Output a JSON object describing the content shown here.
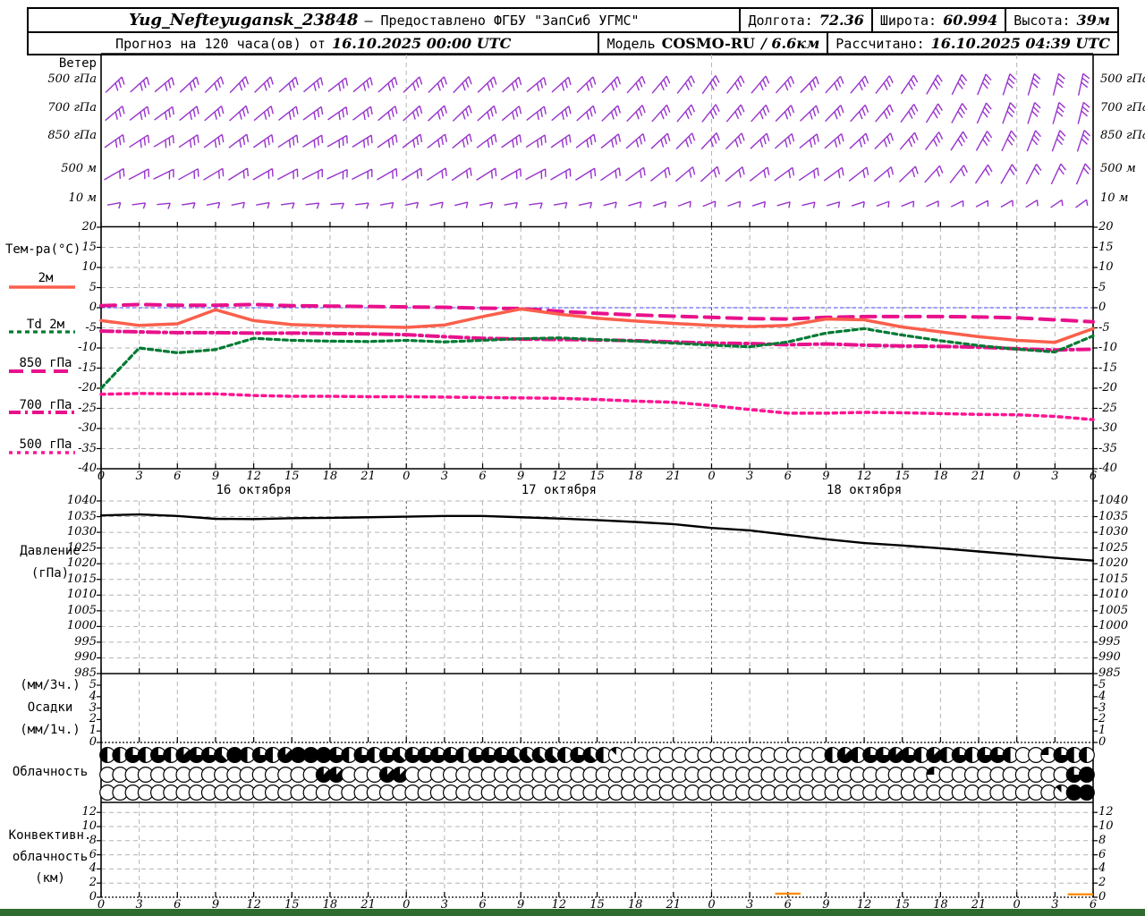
{
  "header": {
    "station": "Yug_Nefteyugansk_23848",
    "provider": "— Предоставлено ФГБУ \"ЗапСиб УГМС\"",
    "lon_label": "Долгота:",
    "lon": "72.36",
    "lat_label": "Широта:",
    "lat": "60.994",
    "alt_label": "Высота:",
    "alt": "39м",
    "forecast_prefix": "Прогноз на 120 часа(ов) от",
    "forecast_time": "16.10.2025 00:00 UTC",
    "model_label": "Модель",
    "model_name": "COSMO-RU",
    "model_res": "/ 6.6км",
    "calc_label": "Рассчитано:",
    "calc_time": "16.10.2025 04:39 UTC"
  },
  "colors": {
    "wind_barb": "#9933cc",
    "grid": "#b3b3b3",
    "day_line": "#555555",
    "frame": "#000000",
    "zero_line": "#4040ff",
    "pressure_line": "#000000",
    "convective_mark": "#ff8c00",
    "footer": "#2e6b2e"
  },
  "chart_data": {
    "type": "meteogram",
    "hours_range": [
      0,
      78
    ],
    "axis": {
      "hour_step": 3,
      "hours": [
        0,
        3,
        6,
        9,
        12,
        15,
        18,
        21,
        24,
        27,
        30,
        33,
        36,
        39,
        42,
        45,
        48,
        51,
        54,
        57,
        60,
        63,
        66,
        69,
        72,
        75,
        78
      ],
      "day_boundaries": [
        24,
        48,
        72
      ],
      "dates": [
        {
          "label": "16 октября",
          "hour": 12
        },
        {
          "label": "17 октября",
          "hour": 36
        },
        {
          "label": "18 октября",
          "hour": 60
        }
      ]
    },
    "wind": {
      "title": "Ветер",
      "levels": [
        {
          "label": "500 гПа",
          "feathers": 3,
          "angles": [
            46,
            48,
            50,
            47,
            45,
            44,
            46,
            48,
            50,
            52,
            50,
            48,
            46,
            45,
            44,
            46,
            48,
            50,
            48,
            46,
            44,
            42,
            40,
            38,
            36,
            38,
            40,
            42,
            44,
            42,
            40,
            38,
            34,
            30,
            26,
            22,
            18,
            16,
            14,
            12
          ]
        },
        {
          "label": "700 гПа",
          "feathers": 3,
          "angles": [
            50,
            52,
            54,
            51,
            49,
            48,
            50,
            52,
            54,
            55,
            53,
            50,
            48,
            47,
            46,
            48,
            50,
            52,
            50,
            48,
            46,
            44,
            42,
            40,
            38,
            40,
            42,
            44,
            46,
            44,
            42,
            40,
            36,
            32,
            28,
            24,
            20,
            18,
            16,
            14
          ]
        },
        {
          "label": "850 гПа",
          "feathers": 3,
          "angles": [
            55,
            57,
            59,
            56,
            54,
            53,
            55,
            57,
            58,
            60,
            58,
            55,
            53,
            52,
            51,
            53,
            55,
            57,
            55,
            53,
            51,
            49,
            47,
            45,
            43,
            45,
            47,
            49,
            51,
            49,
            47,
            45,
            41,
            37,
            33,
            29,
            25,
            22,
            20,
            18
          ]
        },
        {
          "label": "500 м",
          "feathers": 2,
          "angles": [
            60,
            62,
            64,
            61,
            59,
            58,
            60,
            62,
            63,
            65,
            63,
            60,
            58,
            57,
            56,
            58,
            60,
            62,
            60,
            58,
            56,
            54,
            52,
            50,
            48,
            50,
            52,
            54,
            56,
            54,
            52,
            50,
            46,
            42,
            38,
            34,
            30,
            27,
            25,
            23
          ]
        },
        {
          "label": "10 м",
          "feathers": 1,
          "angles": [
            80,
            82,
            84,
            81,
            79,
            78,
            80,
            82,
            83,
            85,
            83,
            80,
            78,
            77,
            76,
            78,
            80,
            82,
            80,
            78,
            76,
            74,
            72,
            70,
            68,
            70,
            72,
            74,
            76,
            74,
            72,
            70,
            68,
            66,
            64,
            62,
            60,
            58,
            56,
            54
          ]
        }
      ]
    },
    "temperature": {
      "title": "Тем-ра(°C)",
      "ylim": [
        -40,
        20
      ],
      "yticks": [
        20,
        15,
        10,
        5,
        0,
        -5,
        -10,
        -15,
        -20,
        -25,
        -30,
        -35,
        -40
      ],
      "series": [
        {
          "key": "t2m",
          "label": "2м",
          "color": "#fa5f4b",
          "width": 3.5,
          "dash": "",
          "values": [
            -3.2,
            -4.4,
            -4.0,
            -0.5,
            -3.2,
            -4.2,
            -4.5,
            -4.7,
            -4.9,
            -4.3,
            -2.2,
            -0.3,
            -1.6,
            -2.6,
            -3.3,
            -3.9,
            -4.4,
            -4.7,
            -4.4,
            -2.8,
            -3.0,
            -4.8,
            -6.0,
            -7.2,
            -8.1,
            -8.6,
            -5.2
          ]
        },
        {
          "key": "td2m",
          "label": "Td 2м",
          "color": "#007a33",
          "width": 3.2,
          "dash": "5 4",
          "values": [
            -20.0,
            -10.0,
            -11.2,
            -10.4,
            -7.6,
            -8.1,
            -8.3,
            -8.4,
            -8.1,
            -8.5,
            -8.1,
            -7.7,
            -7.5,
            -7.9,
            -8.3,
            -8.8,
            -9.3,
            -9.7,
            -8.5,
            -6.3,
            -5.2,
            -6.8,
            -8.2,
            -9.4,
            -10.3,
            -11.0,
            -7.0
          ]
        },
        {
          "key": "t850",
          "label": "850 гПа",
          "color": "#e8118c",
          "width": 4,
          "dash": "16 9",
          "values": [
            0.5,
            0.8,
            0.6,
            0.6,
            0.8,
            0.5,
            0.4,
            0.3,
            0.2,
            0.1,
            -0.1,
            -0.2,
            -0.9,
            -1.4,
            -1.8,
            -2.1,
            -2.4,
            -2.7,
            -2.8,
            -2.4,
            -2.2,
            -2.2,
            -2.2,
            -2.3,
            -2.5,
            -3.0,
            -3.5
          ]
        },
        {
          "key": "t700",
          "label": "700 гПа",
          "color": "#e8118c",
          "width": 4,
          "dash": "13 5 3 5",
          "values": [
            -5.8,
            -6.0,
            -6.2,
            -6.2,
            -6.3,
            -6.3,
            -6.4,
            -6.5,
            -6.7,
            -7.2,
            -7.6,
            -7.8,
            -7.9,
            -8.0,
            -8.2,
            -8.5,
            -8.8,
            -8.9,
            -9.2,
            -9.0,
            -9.3,
            -9.5,
            -9.6,
            -9.8,
            -10.2,
            -10.5,
            -10.3
          ]
        },
        {
          "key": "t500",
          "label": "500 гПа",
          "color": "#ff1493",
          "width": 3.5,
          "dash": "4 5",
          "values": [
            -21.5,
            -21.3,
            -21.4,
            -21.4,
            -21.8,
            -22.0,
            -22.0,
            -22.1,
            -22.1,
            -22.2,
            -22.3,
            -22.4,
            -22.5,
            -22.8,
            -23.2,
            -23.5,
            -24.3,
            -25.3,
            -26.2,
            -26.2,
            -26.0,
            -26.1,
            -26.3,
            -26.5,
            -26.6,
            -27.0,
            -27.8
          ]
        }
      ]
    },
    "pressure": {
      "title": "Давление",
      "unit": "(гПа)",
      "ylim": [
        985,
        1040
      ],
      "yticks": [
        1040,
        1035,
        1030,
        1025,
        1020,
        1015,
        1010,
        1005,
        1000,
        995,
        990,
        985
      ],
      "values": [
        1035.4,
        1035.7,
        1035.2,
        1034.3,
        1034.2,
        1034.5,
        1034.6,
        1034.8,
        1035.0,
        1035.2,
        1035.2,
        1034.8,
        1034.4,
        1033.9,
        1033.3,
        1032.6,
        1031.4,
        1030.6,
        1029.2,
        1027.8,
        1026.6,
        1025.8,
        1024.9,
        1023.9,
        1022.9,
        1021.9,
        1021.0
      ]
    },
    "precipitation": {
      "label_top": "(мм/3ч.)",
      "label_mid": "Осадки",
      "label_bottom": "(мм/1ч.)",
      "ylim": [
        0,
        5
      ],
      "yticks": [
        5,
        4,
        3,
        2,
        1,
        0
      ],
      "values": []
    },
    "clouds": {
      "label": "Облачность",
      "oktas_rows": [
        [
          4,
          4,
          6,
          4,
          6,
          4,
          7,
          6,
          6,
          5,
          8,
          4,
          6,
          4,
          7,
          8,
          8,
          8,
          6,
          4,
          6,
          4,
          6,
          5,
          6,
          6,
          6,
          6,
          4,
          6,
          6,
          6,
          5,
          5,
          5,
          5,
          4,
          6,
          5,
          4,
          1,
          0,
          0,
          0,
          0,
          0,
          0,
          0,
          0,
          0,
          0,
          0,
          0,
          0,
          0,
          0,
          0,
          4,
          7,
          4,
          6,
          6,
          7,
          6,
          4,
          7,
          4,
          6,
          4,
          6,
          6,
          4,
          0,
          0,
          2,
          6,
          4,
          4
        ],
        [
          0,
          0,
          0,
          0,
          0,
          0,
          0,
          0,
          0,
          0,
          0,
          0,
          0,
          0,
          0,
          0,
          0,
          7,
          7,
          0,
          0,
          0,
          7,
          7,
          0,
          0,
          0,
          0,
          0,
          0,
          0,
          0,
          0,
          0,
          0,
          0,
          0,
          0,
          0,
          0,
          0,
          0,
          0,
          0,
          0,
          0,
          0,
          0,
          0,
          0,
          0,
          0,
          0,
          0,
          0,
          0,
          0,
          0,
          0,
          0,
          0,
          0,
          0,
          0,
          0,
          2,
          0,
          0,
          0,
          0,
          0,
          0,
          0,
          0,
          0,
          0,
          6,
          8
        ],
        [
          0,
          0,
          0,
          0,
          0,
          0,
          0,
          0,
          0,
          0,
          0,
          0,
          0,
          0,
          0,
          0,
          0,
          0,
          0,
          0,
          0,
          0,
          0,
          0,
          0,
          0,
          0,
          0,
          0,
          0,
          0,
          0,
          0,
          0,
          0,
          0,
          0,
          0,
          0,
          0,
          0,
          0,
          0,
          0,
          0,
          0,
          0,
          0,
          0,
          0,
          0,
          0,
          0,
          0,
          0,
          0,
          0,
          0,
          0,
          0,
          0,
          0,
          0,
          0,
          0,
          0,
          0,
          0,
          0,
          0,
          0,
          0,
          0,
          0,
          0,
          1,
          8,
          8
        ]
      ]
    },
    "convective": {
      "label1": "Конвективн.",
      "label2": "облачность",
      "unit": "(км)",
      "ylim": [
        0,
        12
      ],
      "yticks": [
        12,
        10,
        8,
        6,
        4,
        2,
        0
      ],
      "segments": [
        {
          "h1": 53,
          "h2": 55,
          "km": 0.5
        },
        {
          "h1": 76,
          "h2": 78,
          "km": 0.4
        }
      ]
    }
  }
}
